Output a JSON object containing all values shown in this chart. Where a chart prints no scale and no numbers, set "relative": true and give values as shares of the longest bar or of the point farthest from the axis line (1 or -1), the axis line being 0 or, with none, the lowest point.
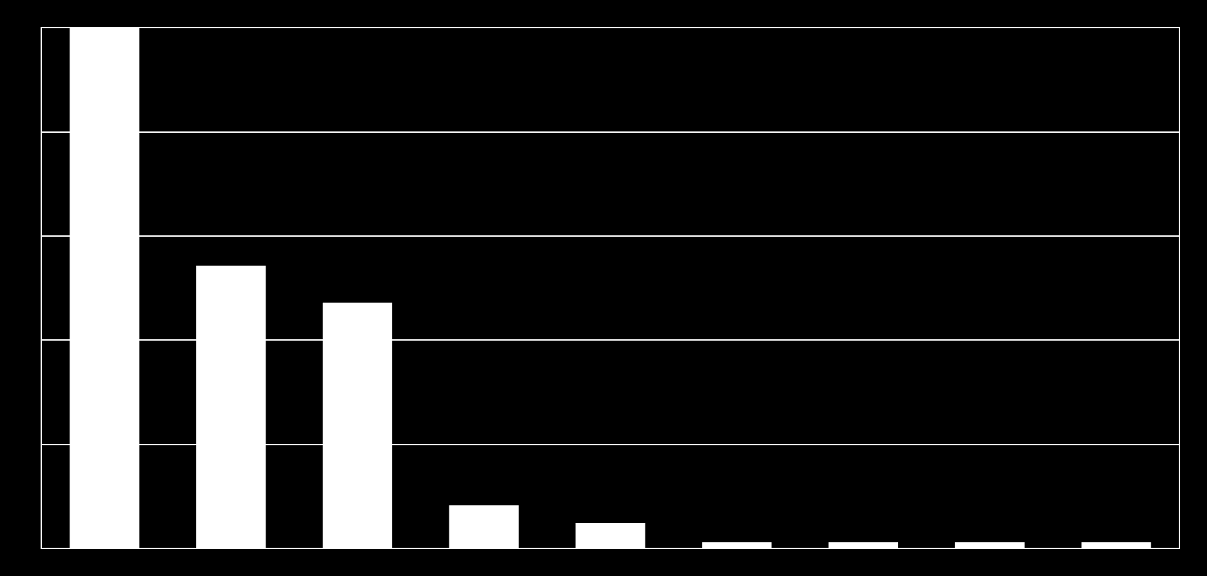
{
  "chart_data": {
    "type": "bar",
    "relative": true,
    "categories": [
      null,
      null,
      null,
      null,
      null,
      null,
      null,
      null,
      null
    ],
    "values": [
      1,
      0.543,
      0.472,
      0.083,
      0.049,
      0.012,
      0.012,
      0.012,
      0.012
    ],
    "color": "#ffffff",
    "grid": "y"
  }
}
